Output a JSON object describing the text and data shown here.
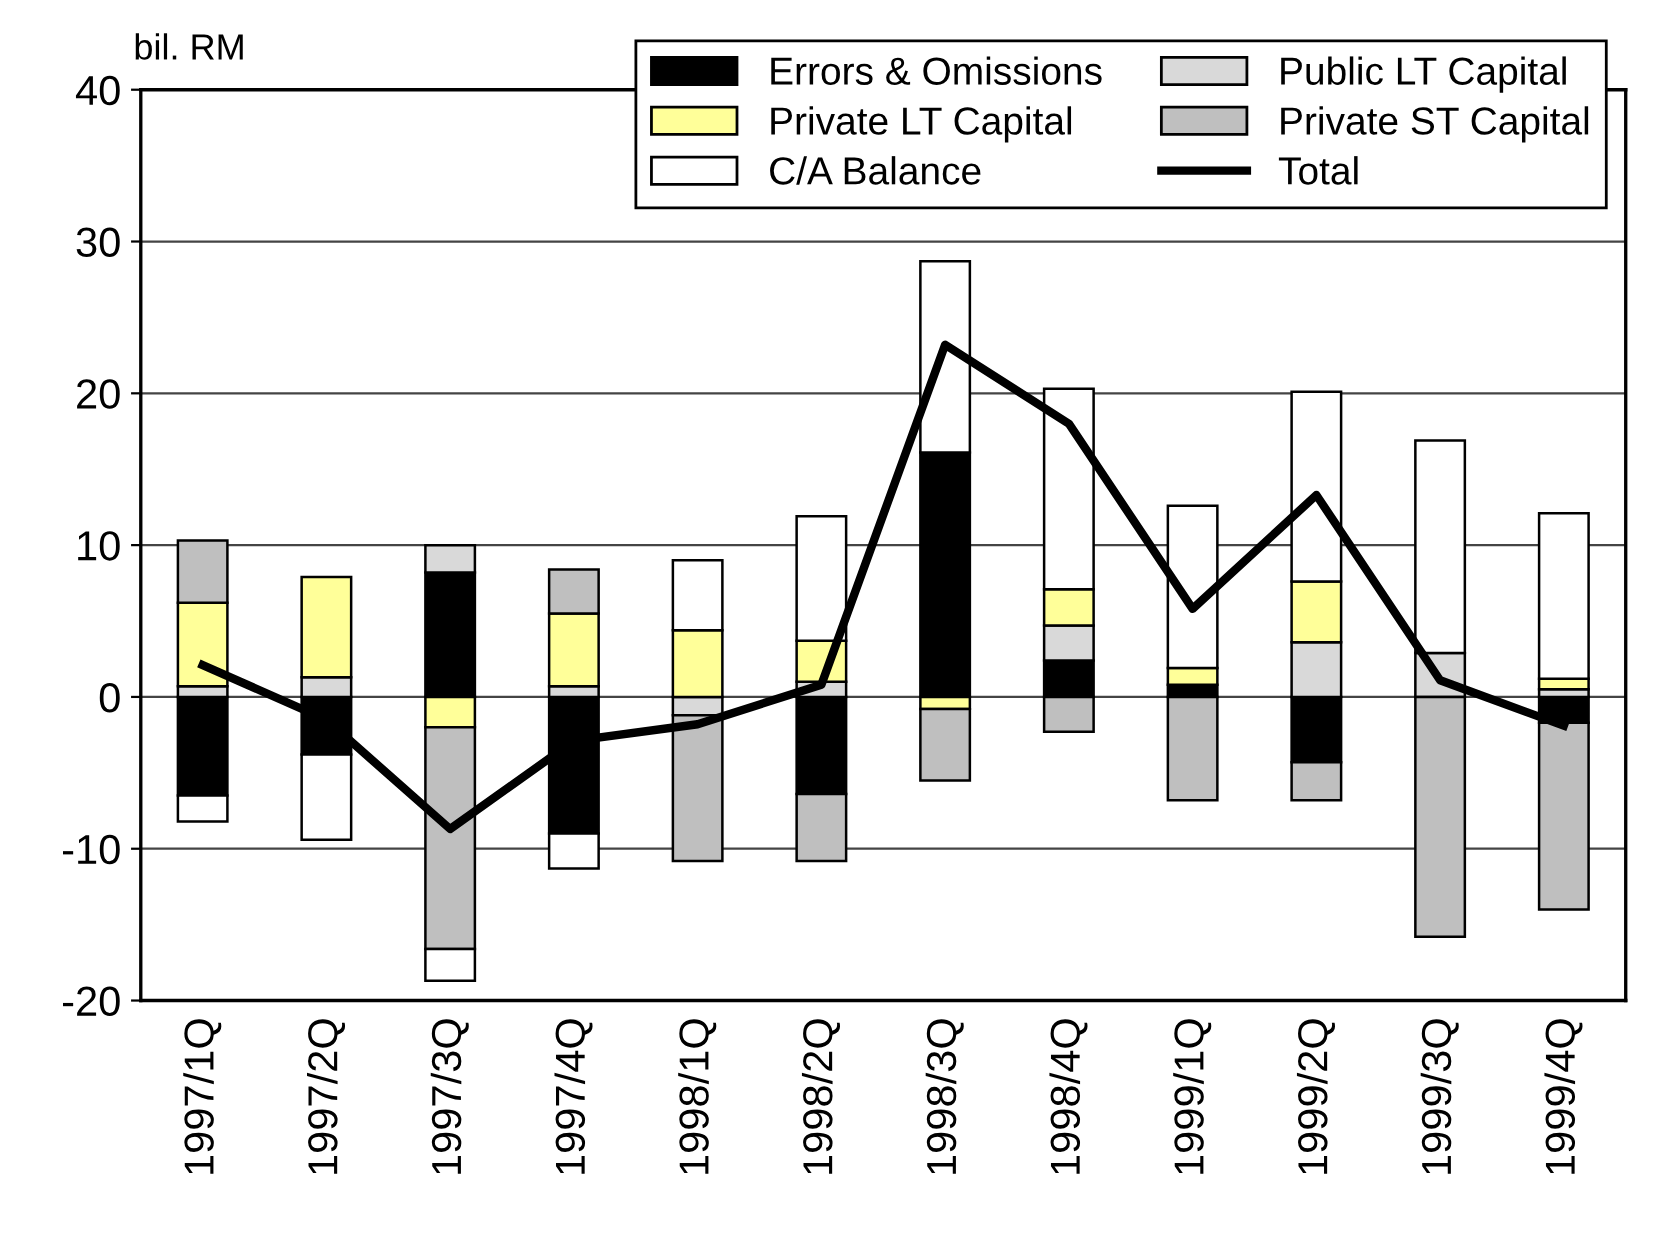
{
  "chart_data": {
    "type": "bar",
    "stacked": true,
    "ylabel": "bil. RM",
    "categories": [
      "1997/1Q",
      "1997/2Q",
      "1997/3Q",
      "1997/4Q",
      "1998/1Q",
      "1998/2Q",
      "1998/3Q",
      "1998/4Q",
      "1999/1Q",
      "1999/2Q",
      "1999/3Q",
      "1999/4Q"
    ],
    "series": [
      {
        "name": "Errors & Omissions",
        "color": "#000000",
        "values": [
          -6.5,
          -3.8,
          8.2,
          -9.0,
          null,
          -6.4,
          16.1,
          2.4,
          0.8,
          -4.3,
          null,
          -1.7
        ]
      },
      {
        "name": "Public LT Capital",
        "color": "#d9d9d9",
        "values": [
          0.7,
          1.3,
          1.8,
          0.7,
          -1.2,
          1.0,
          null,
          2.3,
          null,
          3.6,
          2.9,
          0.5
        ]
      },
      {
        "name": "Private LT Capital",
        "color": "#ffff99",
        "values": [
          5.5,
          6.6,
          -2.0,
          4.8,
          4.4,
          2.7,
          -0.8,
          2.4,
          1.1,
          4.0,
          null,
          0.7
        ]
      },
      {
        "name": "Private ST Capital",
        "color": "#bfbfbf",
        "values": [
          4.1,
          null,
          -14.6,
          2.9,
          -9.6,
          -4.4,
          -4.7,
          -2.3,
          -6.8,
          -2.5,
          -15.8,
          -12.3
        ]
      },
      {
        "name": "C/A Balance",
        "color": "#ffffff",
        "values": [
          -1.7,
          -5.6,
          -2.1,
          -2.3,
          4.6,
          8.2,
          12.6,
          13.2,
          10.7,
          12.5,
          14.0,
          10.9
        ]
      },
      {
        "name": "Total",
        "type": "line",
        "color": "#000000",
        "values": [
          2.1,
          -1.5,
          -8.7,
          -2.9,
          -1.8,
          0.8,
          23.2,
          18.0,
          5.8,
          13.3,
          1.1,
          -1.9
        ]
      }
    ],
    "ylim": [
      -20,
      40
    ],
    "yticks": [
      -20,
      -10,
      0,
      10,
      20,
      30,
      40
    ],
    "grid": "y",
    "legend": "top right",
    "marker": "none",
    "line_style": "solid"
  }
}
